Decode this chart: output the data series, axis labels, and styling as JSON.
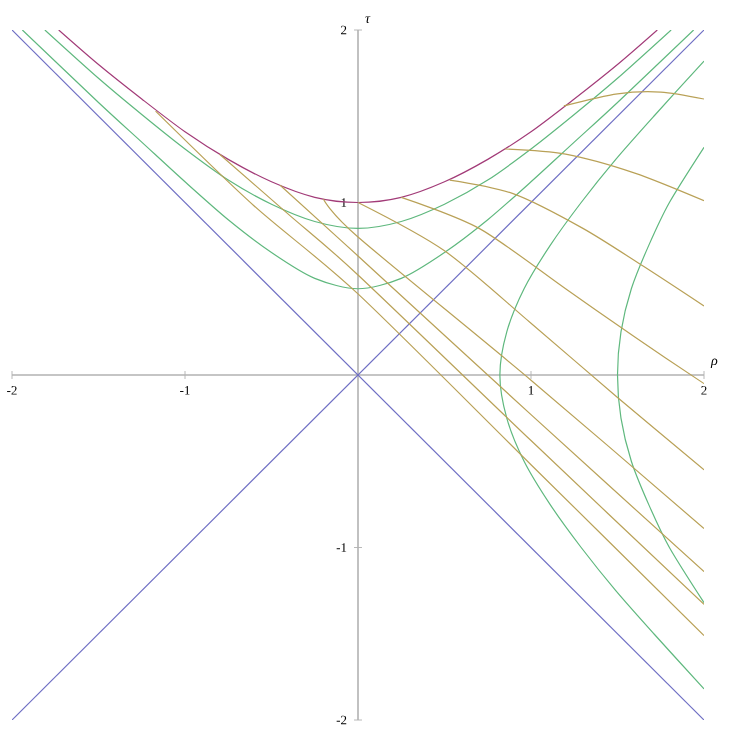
{
  "chart_data": {
    "type": "line",
    "xlabel": "ρ",
    "ylabel": "τ",
    "xlim": [
      -2,
      2
    ],
    "ylim": [
      -2,
      2
    ],
    "xticks": [
      -2,
      -1,
      1,
      2
    ],
    "yticks": [
      -2,
      -1,
      1,
      2
    ],
    "marker": "none",
    "line_style": "solid",
    "series": [
      {
        "color": "#6f6fc4",
        "x": [
          -2,
          2
        ],
        "values": [
          2,
          -2
        ]
      },
      {
        "color": "#6f6fc4",
        "x": [
          -2,
          2
        ],
        "values": [
          -2,
          2
        ]
      },
      {
        "color": "#a23b78",
        "x": [
          -1.73,
          -1.5,
          -1.25,
          -1,
          -0.75,
          -0.5,
          -0.25,
          0,
          0.25,
          0.5,
          0.75,
          1,
          1.25,
          1.5,
          1.73
        ],
        "values": [
          2.0,
          1.8,
          1.6,
          1.41,
          1.25,
          1.12,
          1.03,
          1,
          1.03,
          1.12,
          1.25,
          1.41,
          1.6,
          1.8,
          2.0
        ]
      },
      {
        "color": "#5fb87e",
        "x": [
          -1.81,
          -1.5,
          -1.25,
          -1,
          -0.75,
          -0.5,
          -0.25,
          0,
          0.25,
          0.5,
          0.75,
          1,
          1.25,
          1.5,
          1.81
        ],
        "values": [
          2.0,
          1.72,
          1.51,
          1.31,
          1.13,
          0.99,
          0.89,
          0.85,
          0.89,
          0.99,
          1.13,
          1.31,
          1.51,
          1.72,
          2.0
        ]
      },
      {
        "color": "#5fb87e",
        "x": [
          -1.94,
          -1.5,
          -1.25,
          -1,
          -0.75,
          -0.5,
          -0.25,
          0,
          0.25,
          0.5,
          0.75,
          1,
          1.25,
          1.5,
          1.94
        ],
        "values": [
          2.0,
          1.58,
          1.35,
          1.12,
          0.9,
          0.71,
          0.56,
          0.5,
          0.56,
          0.71,
          0.9,
          1.12,
          1.35,
          1.58,
          2.0
        ]
      },
      {
        "color": "#5fb87e",
        "x": [
          2.0,
          1.71,
          1.49,
          1.29,
          1.11,
          0.96,
          0.86,
          0.82,
          0.86,
          0.96,
          1.11,
          1.29,
          1.49,
          1.71,
          2.0
        ],
        "values": [
          -1.82,
          -1.5,
          -1.25,
          -1,
          -0.75,
          -0.5,
          -0.25,
          0,
          0.25,
          0.5,
          0.75,
          1,
          1.25,
          1.5,
          1.82
        ]
      },
      {
        "color": "#5fb87e",
        "x": [
          2.0,
          1.8,
          1.68,
          1.58,
          1.52,
          1.5,
          1.52,
          1.58,
          1.68,
          1.8,
          2.0
        ],
        "values": [
          -1.32,
          -1,
          -0.75,
          -0.5,
          -0.25,
          0,
          0.25,
          0.5,
          0.75,
          1,
          1.32
        ]
      },
      {
        "color": "#b9a157",
        "x": [
          -1.17,
          -0.6,
          0,
          1,
          2
        ],
        "values": [
          1.53,
          0.98,
          0.47,
          -0.52,
          -1.51
        ]
      },
      {
        "color": "#b9a157",
        "x": [
          -0.8,
          -0.4,
          0,
          1,
          2
        ],
        "values": [
          1.28,
          0.93,
          0.58,
          -0.38,
          -1.33
        ]
      },
      {
        "color": "#b9a157",
        "x": [
          -0.45,
          0,
          1,
          2
        ],
        "values": [
          1.1,
          0.69,
          -0.23,
          -1.14
        ]
      },
      {
        "color": "#b9a157",
        "x": [
          -0.2,
          0,
          1,
          2
        ],
        "values": [
          1.02,
          0.8,
          -0.03,
          -0.89
        ]
      },
      {
        "color": "#b9a157",
        "x": [
          0,
          0.5,
          1,
          1.5,
          2
        ],
        "values": [
          1,
          0.72,
          0.3,
          -0.13,
          -0.55
        ]
      },
      {
        "color": "#b9a157",
        "x": [
          0.25,
          0.7,
          1.2,
          1.6,
          2
        ],
        "values": [
          1.03,
          0.85,
          0.5,
          0.22,
          -0.05
        ]
      },
      {
        "color": "#b9a157",
        "x": [
          0.53,
          0.9,
          1.3,
          1.65,
          2
        ],
        "values": [
          1.13,
          1.05,
          0.85,
          0.63,
          0.4
        ]
      },
      {
        "color": "#b9a157",
        "x": [
          0.85,
          1.2,
          1.6,
          2
        ],
        "values": [
          1.31,
          1.28,
          1.17,
          1.01
        ]
      },
      {
        "color": "#b9a157",
        "x": [
          1.19,
          1.5,
          1.75,
          2
        ],
        "values": [
          1.56,
          1.63,
          1.64,
          1.6
        ]
      }
    ]
  }
}
